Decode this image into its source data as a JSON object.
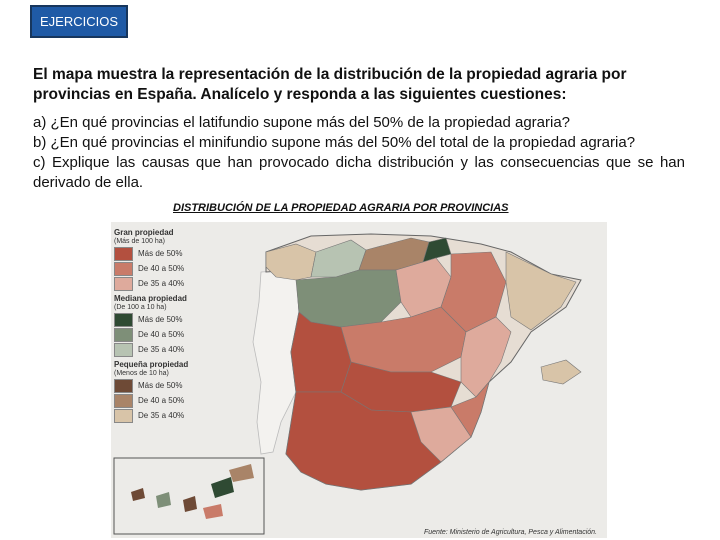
{
  "tag_label": "EJERCICIOS",
  "intro": "El mapa muestra la representación de la distribución de la propiedad agraria por provincias en España. Analícelo y responda a las siguientes cuestiones:",
  "questions": [
    "a) ¿En qué provincias el latifundio supone más del 50% de la propiedad agraria?",
    "b) ¿En qué provincias el minifundio supone más del 50% del total de la propiedad agraria?",
    "c) Explique las causas que han provocado dicha distribución y las consecuencias que se han derivado de ella."
  ],
  "figure_title": "DISTRIBUCIÓN DE LA PROPIEDAD AGRARIA POR PROVINCIAS",
  "legend": {
    "groups": [
      {
        "title": "Gran propiedad",
        "subtitle": "(Más de 100 ha)",
        "items": [
          {
            "label": "Más de 50%",
            "color": "#b3503f"
          },
          {
            "label": "De 40 a 50%",
            "color": "#c97b69"
          },
          {
            "label": "De 35 a 40%",
            "color": "#deaa9c"
          }
        ]
      },
      {
        "title": "Mediana propiedad",
        "subtitle": "(De 100 a 10 ha)",
        "items": [
          {
            "label": "Más de 50%",
            "color": "#2f4a33"
          },
          {
            "label": "De 40 a 50%",
            "color": "#7e8f78"
          },
          {
            "label": "De 35 a 40%",
            "color": "#b7c3b2"
          }
        ]
      },
      {
        "title": "Pequeña propiedad",
        "subtitle": "(Menos de 10 ha)",
        "items": [
          {
            "label": "Más de 50%",
            "color": "#6e4a36"
          },
          {
            "label": "De 40 a 50%",
            "color": "#a98468"
          },
          {
            "label": "De 35 a 40%",
            "color": "#d8c4a8"
          }
        ]
      }
    ]
  },
  "source": "Fuente: Ministerio de Agricultura, Pesca y Alimentación."
}
